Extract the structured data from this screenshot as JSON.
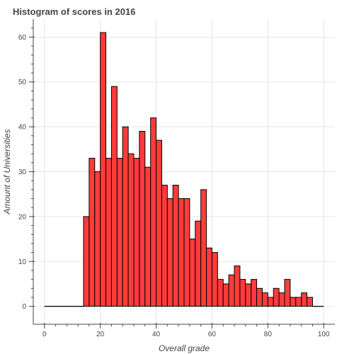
{
  "chart_data": {
    "type": "bar",
    "title": "Histogram of scores in 2016",
    "xlabel": "Overall grade",
    "ylabel": "Amount of Universities",
    "xlim": [
      -4,
      104
    ],
    "ylim": [
      -4,
      64
    ],
    "x_ticks": [
      0,
      20,
      40,
      60,
      80,
      100
    ],
    "x_tick_labels": [
      "0",
      "20",
      "40",
      "60",
      "80",
      "100"
    ],
    "y_ticks": [
      0,
      10,
      20,
      30,
      40,
      50,
      60
    ],
    "y_tick_labels": [
      "0",
      "10",
      "20",
      "30",
      "40",
      "50",
      "60"
    ],
    "grid": true,
    "bin_width": 2,
    "bin_starts": [
      0,
      2,
      4,
      6,
      8,
      10,
      12,
      14,
      16,
      18,
      20,
      22,
      24,
      26,
      28,
      30,
      32,
      34,
      36,
      38,
      40,
      42,
      44,
      46,
      48,
      50,
      52,
      54,
      56,
      58,
      60,
      62,
      64,
      66,
      68,
      70,
      72,
      74,
      76,
      78,
      80,
      82,
      84,
      86,
      88,
      90,
      92,
      94,
      96,
      98
    ],
    "values": [
      0,
      0,
      0,
      0,
      0,
      0,
      0,
      20,
      33,
      30,
      61,
      33,
      49,
      33,
      40,
      34,
      33,
      39,
      31,
      42,
      37,
      27,
      24,
      27,
      24,
      24,
      15,
      19,
      26,
      13,
      12,
      6,
      5,
      7,
      9,
      6,
      5,
      6,
      4,
      3,
      2,
      4,
      3,
      6,
      2,
      2,
      3,
      2,
      0,
      0
    ]
  },
  "colors": {
    "bar_fill": "#ff3b3b",
    "bar_stroke": "#000000",
    "grid": "#e5e5e5",
    "axis": "#444444",
    "text": "#444444"
  }
}
